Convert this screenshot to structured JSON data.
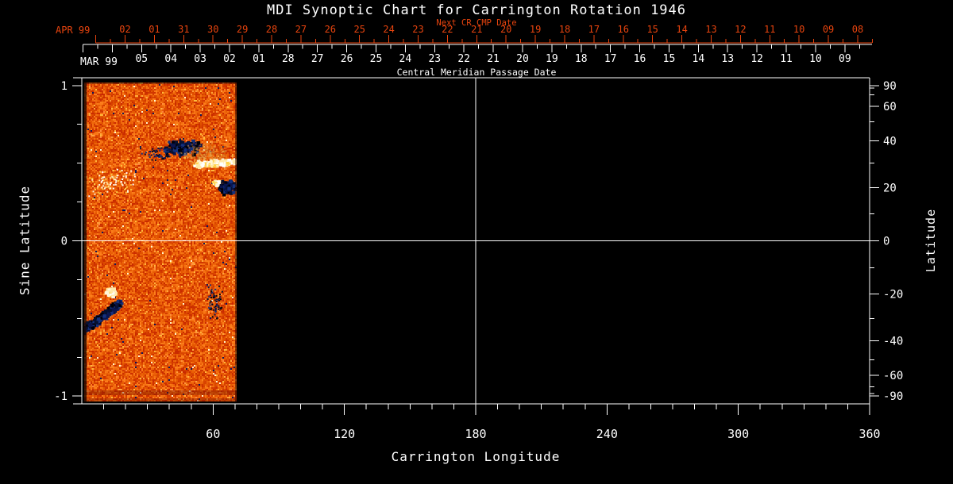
{
  "title": "MDI Synoptic Chart for Carrington Rotation 1946",
  "colors": {
    "background": "#000000",
    "axis": "#ffffff",
    "red_axis": "#e8440e",
    "crosshair": "#ffffff",
    "magnetogram_base_dark": "#bb2800",
    "magnetogram_base_bright": "#ff7a28",
    "magnetogram_fleck_yellow": "#ffd24a",
    "magnetogram_fleck_cream": "#fff3cf",
    "magnetogram_negative": "#0a1550"
  },
  "top_axis_red": {
    "title": "Next CR CMP Date",
    "month_label": "APR 99",
    "tick_labels": [
      "02",
      "01",
      "31",
      "30",
      "29",
      "28",
      "27",
      "26",
      "25",
      "24",
      "23",
      "22",
      "21",
      "20",
      "19",
      "18",
      "17",
      "16",
      "15",
      "14",
      "13",
      "12",
      "11",
      "10",
      "09",
      "08"
    ],
    "first_major_deg": 6.4,
    "day_step_deg": 13.39,
    "labels_start_index": 1
  },
  "top_axis_white": {
    "title": "Central Meridian Passage Date",
    "month_label": "MAR 99",
    "tick_labels": [
      "05",
      "04",
      "03",
      "02",
      "01",
      "28",
      "27",
      "26",
      "25",
      "24",
      "23",
      "22",
      "21",
      "20",
      "19",
      "18",
      "17",
      "16",
      "15",
      "14",
      "13",
      "12",
      "11",
      "10",
      "09"
    ],
    "first_major_deg": 0.55,
    "day_step_deg": 13.39,
    "labels_start_index": 2
  },
  "x_axis": {
    "label": "Carrington Longitude",
    "major_ticks": [
      60,
      120,
      180,
      240,
      300,
      360
    ],
    "minor_step_deg": 10,
    "range_deg": [
      0,
      360
    ]
  },
  "y_axis_left": {
    "label": "Sine Latitude",
    "major_ticks": [
      1,
      0,
      -1
    ],
    "minor_step": 0.25,
    "range": [
      -1.05,
      1.05
    ]
  },
  "y_axis_right": {
    "label": "Latitude",
    "major_ticks": [
      90,
      60,
      40,
      20,
      0,
      -20,
      -40,
      -60,
      -90
    ],
    "minor_ticks": [
      80,
      70,
      50,
      30,
      10,
      -10,
      -30,
      -50,
      -70,
      -80
    ]
  },
  "chart_data": {
    "type": "heatmap",
    "title": "MDI Synoptic Chart for Carrington Rotation 1946",
    "xlabel": "Carrington Longitude",
    "ylabel_left": "Sine Latitude",
    "ylabel_right": "Latitude",
    "xlim_deg": [
      0,
      360
    ],
    "ylim_sine": [
      -1.05,
      1.05
    ],
    "x_major_ticks": [
      60,
      120,
      180,
      240,
      300,
      360
    ],
    "sine_major_ticks": [
      1,
      0,
      -1
    ],
    "latitude_ticks": [
      90,
      60,
      40,
      20,
      0,
      -20,
      -40,
      -60,
      -90
    ],
    "crosshair": {
      "longitude_deg": 180,
      "sine_latitude": 0
    },
    "data_coverage": {
      "longitude_deg": [
        2,
        71
      ],
      "sine_latitude": [
        -1,
        1
      ],
      "description": "Magnetogram data present only for roughly the first 70 degrees of Carrington longitude; the rest of the chart is empty (black)."
    },
    "features": [
      {
        "name": "active-region-negative-north",
        "polarity": "negative",
        "longitude_deg": 46.5,
        "sine_latitude": 0.6,
        "latitude_deg": 37,
        "halfwidth_deg": 9,
        "halfheight_sine": 0.055,
        "density": 260
      },
      {
        "name": "active-region-halo",
        "polarity": "halo",
        "longitude_deg": 57,
        "sine_latitude": 0.55,
        "halfwidth_deg": 12,
        "halfheight_sine": 0.09,
        "density": 200,
        "sparse": true
      },
      {
        "name": "plage-bright-streak-north",
        "polarity": "positive",
        "kind": "streak",
        "from": {
          "longitude_deg": 52,
          "sine_latitude": 0.49
        },
        "to": {
          "longitude_deg": 70,
          "sine_latitude": 0.51
        },
        "halfheight_sine": 0.02,
        "density": 230
      },
      {
        "name": "active-region-negative-north-2",
        "polarity": "negative",
        "longitude_deg": 66.5,
        "sine_latitude": 0.34,
        "latitude_deg": 20,
        "halfwidth_deg": 4.5,
        "halfheight_sine": 0.05,
        "density": 170
      },
      {
        "name": "bright-spot-north-2",
        "polarity": "positive",
        "longitude_deg": 61.5,
        "sine_latitude": 0.37,
        "halfwidth_deg": 1.8,
        "halfheight_sine": 0.02,
        "density": 45
      },
      {
        "name": "bright-spot-south",
        "polarity": "positive",
        "longitude_deg": 13,
        "sine_latitude": -0.335,
        "latitude_deg": -20,
        "halfwidth_deg": 2.6,
        "halfheight_sine": 0.026,
        "density": 75
      },
      {
        "name": "negative-streak-south",
        "polarity": "negative",
        "kind": "streak",
        "from": {
          "longitude_deg": 1,
          "sine_latitude": -0.58
        },
        "to": {
          "longitude_deg": 18,
          "sine_latitude": -0.4
        },
        "halfheight_sine": 0.03,
        "density": 300
      },
      {
        "name": "speckle-field-negative-south",
        "polarity": "negative",
        "longitude_deg": 61,
        "sine_latitude": -0.39,
        "halfwidth_deg": 4,
        "halfheight_sine": 0.13,
        "density": 60,
        "sparse": true
      },
      {
        "name": "speckle-trail-negative-north",
        "polarity": "negative",
        "longitude_deg": 36,
        "sine_latitude": 0.56,
        "halfwidth_deg": 10,
        "halfheight_sine": 0.05,
        "density": 55,
        "sparse": true
      },
      {
        "name": "bright-flecks-north",
        "polarity": "positive",
        "longitude_deg": 13,
        "sine_latitude": 0.37,
        "halfwidth_deg": 13,
        "halfheight_sine": 0.11,
        "density": 85,
        "sparse": true
      }
    ]
  }
}
